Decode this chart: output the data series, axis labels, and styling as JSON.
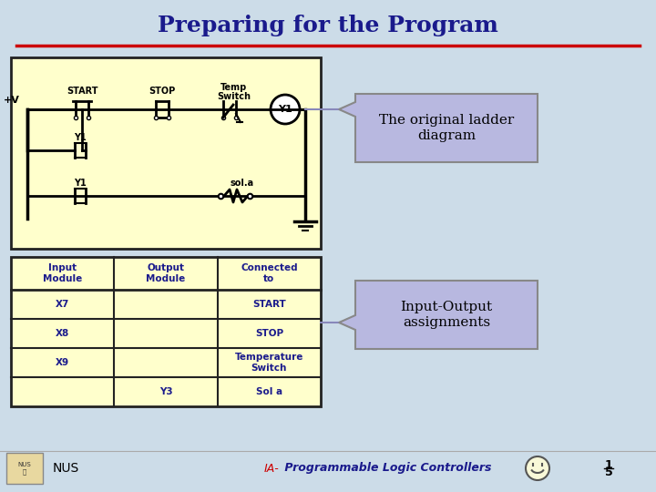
{
  "title": "Preparing for the Program",
  "title_color": "#1a1a8c",
  "title_fontsize": 18,
  "slide_bg": "#ccdce8",
  "red_line_color": "#cc0000",
  "ladder_bg": "#ffffcc",
  "table_bg": "#ffffcc",
  "table_border": "#222222",
  "table_text_color": "#1a1a8c",
  "callout_bg": "#b8b8e0",
  "callout_border": "#888888",
  "callout1_text": "The original ladder\ndiagram",
  "callout2_text": "Input-Output\nassignments",
  "footer_text": "IA- Programmable Logic Controllers",
  "footer_color_ia": "#cc0000",
  "footer_color_rest": "#1a1a8c",
  "nus_text": "NUS",
  "page_num": "15",
  "table_headers": [
    "Input\nModule",
    "Output\nModule",
    "Connected\nto"
  ],
  "table_data": [
    [
      "X7",
      "",
      "START"
    ],
    [
      "X8",
      "",
      "STOP"
    ],
    [
      "X9",
      "",
      "Temperature\nSwitch"
    ],
    [
      "",
      "Y3",
      "Sol a"
    ]
  ],
  "ladder_text_color": "#000000"
}
